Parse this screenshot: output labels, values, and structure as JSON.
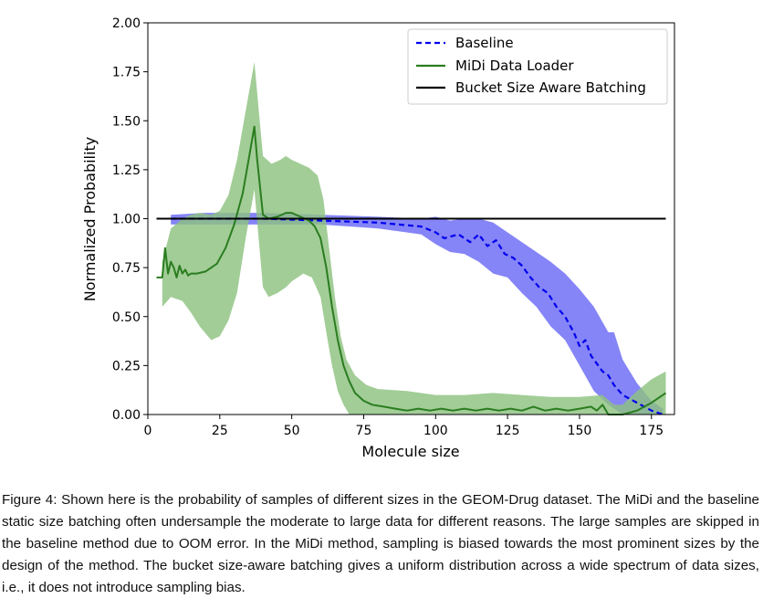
{
  "chart_data": {
    "type": "line",
    "title": "",
    "xlabel": "Molecule size",
    "ylabel": "Normalized Probability",
    "xlim": [
      0,
      183
    ],
    "ylim": [
      0,
      2.0
    ],
    "x_ticks": [
      0,
      25,
      50,
      75,
      100,
      125,
      150,
      175
    ],
    "y_ticks": [
      0,
      0.25,
      0.5,
      0.75,
      1.0,
      1.25,
      1.5,
      1.75,
      2.0
    ],
    "x_tick_labels": [
      "0",
      "25",
      "50",
      "75",
      "100",
      "125",
      "150",
      "175"
    ],
    "y_tick_labels": [
      "0.00",
      "0.25",
      "0.50",
      "0.75",
      "1.00",
      "1.25",
      "1.50",
      "1.75",
      "2.00"
    ],
    "legend_position": "upper right",
    "series": [
      {
        "name": "Baseline",
        "style": "dashed",
        "color": "#0000ee",
        "band_color": "#6a6af5",
        "points": [
          [
            8,
            1.0
          ],
          [
            20,
            1.0
          ],
          [
            40,
            1.0
          ],
          [
            60,
            0.99
          ],
          [
            80,
            0.98
          ],
          [
            95,
            0.96
          ],
          [
            100,
            0.93
          ],
          [
            103,
            0.9
          ],
          [
            108,
            0.92
          ],
          [
            112,
            0.88
          ],
          [
            115,
            0.92
          ],
          [
            118,
            0.86
          ],
          [
            121,
            0.89
          ],
          [
            124,
            0.82
          ],
          [
            127,
            0.8
          ],
          [
            130,
            0.76
          ],
          [
            133,
            0.7
          ],
          [
            136,
            0.65
          ],
          [
            139,
            0.62
          ],
          [
            142,
            0.55
          ],
          [
            145,
            0.5
          ],
          [
            148,
            0.42
          ],
          [
            150,
            0.35
          ],
          [
            152,
            0.38
          ],
          [
            154,
            0.3
          ],
          [
            156,
            0.26
          ],
          [
            158,
            0.22
          ],
          [
            160,
            0.2
          ],
          [
            162,
            0.15
          ],
          [
            165,
            0.1
          ],
          [
            170,
            0.06
          ],
          [
            175,
            0.02
          ],
          [
            179,
            0.0
          ]
        ],
        "lower": [
          [
            8,
            0.97
          ],
          [
            20,
            0.97
          ],
          [
            40,
            0.97
          ],
          [
            60,
            0.97
          ],
          [
            80,
            0.95
          ],
          [
            95,
            0.92
          ],
          [
            100,
            0.87
          ],
          [
            105,
            0.83
          ],
          [
            110,
            0.82
          ],
          [
            115,
            0.78
          ],
          [
            120,
            0.72
          ],
          [
            125,
            0.7
          ],
          [
            130,
            0.62
          ],
          [
            135,
            0.55
          ],
          [
            140,
            0.45
          ],
          [
            145,
            0.38
          ],
          [
            150,
            0.25
          ],
          [
            155,
            0.12
          ],
          [
            160,
            0.05
          ],
          [
            165,
            0.0
          ],
          [
            170,
            0.0
          ],
          [
            179,
            0.0
          ]
        ],
        "upper": [
          [
            8,
            1.02
          ],
          [
            20,
            1.03
          ],
          [
            40,
            1.03
          ],
          [
            60,
            1.02
          ],
          [
            80,
            1.01
          ],
          [
            95,
            1.0
          ],
          [
            100,
            1.01
          ],
          [
            105,
            0.99
          ],
          [
            110,
            1.0
          ],
          [
            115,
            1.0
          ],
          [
            120,
            0.98
          ],
          [
            125,
            0.93
          ],
          [
            130,
            0.88
          ],
          [
            135,
            0.83
          ],
          [
            140,
            0.78
          ],
          [
            145,
            0.72
          ],
          [
            150,
            0.64
          ],
          [
            155,
            0.55
          ],
          [
            160,
            0.42
          ],
          [
            162,
            0.42
          ],
          [
            165,
            0.28
          ],
          [
            170,
            0.16
          ],
          [
            175,
            0.07
          ],
          [
            179,
            0.03
          ]
        ]
      },
      {
        "name": "MiDi Data Loader",
        "style": "solid",
        "color": "#2a7d1f",
        "band_color": "#8dc280",
        "points": [
          [
            3,
            0.7
          ],
          [
            5,
            0.7
          ],
          [
            6,
            0.85
          ],
          [
            7,
            0.72
          ],
          [
            8,
            0.78
          ],
          [
            9,
            0.75
          ],
          [
            10,
            0.7
          ],
          [
            11,
            0.76
          ],
          [
            12,
            0.72
          ],
          [
            13,
            0.74
          ],
          [
            14,
            0.71
          ],
          [
            15,
            0.72
          ],
          [
            17,
            0.72
          ],
          [
            20,
            0.73
          ],
          [
            24,
            0.77
          ],
          [
            27,
            0.85
          ],
          [
            30,
            0.97
          ],
          [
            33,
            1.13
          ],
          [
            35,
            1.3
          ],
          [
            37,
            1.47
          ],
          [
            38,
            1.3
          ],
          [
            40,
            1.02
          ],
          [
            42,
            1.0
          ],
          [
            45,
            1.01
          ],
          [
            48,
            1.03
          ],
          [
            50,
            1.03
          ],
          [
            53,
            1.01
          ],
          [
            56,
            0.99
          ],
          [
            58,
            0.96
          ],
          [
            60,
            0.9
          ],
          [
            62,
            0.75
          ],
          [
            64,
            0.55
          ],
          [
            66,
            0.38
          ],
          [
            68,
            0.25
          ],
          [
            70,
            0.17
          ],
          [
            72,
            0.11
          ],
          [
            75,
            0.07
          ],
          [
            78,
            0.05
          ],
          [
            82,
            0.04
          ],
          [
            86,
            0.03
          ],
          [
            90,
            0.02
          ],
          [
            94,
            0.03
          ],
          [
            98,
            0.02
          ],
          [
            102,
            0.03
          ],
          [
            106,
            0.02
          ],
          [
            110,
            0.03
          ],
          [
            114,
            0.02
          ],
          [
            118,
            0.03
          ],
          [
            122,
            0.02
          ],
          [
            126,
            0.03
          ],
          [
            130,
            0.02
          ],
          [
            134,
            0.04
          ],
          [
            138,
            0.02
          ],
          [
            142,
            0.03
          ],
          [
            146,
            0.02
          ],
          [
            150,
            0.03
          ],
          [
            154,
            0.04
          ],
          [
            156,
            0.02
          ],
          [
            158,
            0.05
          ],
          [
            160,
            0.0
          ],
          [
            162,
            0.0
          ],
          [
            165,
            0.0
          ],
          [
            170,
            0.02
          ],
          [
            175,
            0.06
          ],
          [
            180,
            0.11
          ]
        ],
        "lower": [
          [
            5,
            0.55
          ],
          [
            8,
            0.6
          ],
          [
            12,
            0.58
          ],
          [
            15,
            0.52
          ],
          [
            18,
            0.45
          ],
          [
            22,
            0.38
          ],
          [
            25,
            0.4
          ],
          [
            28,
            0.48
          ],
          [
            31,
            0.62
          ],
          [
            34,
            0.9
          ],
          [
            37,
            1.15
          ],
          [
            40,
            0.65
          ],
          [
            42,
            0.6
          ],
          [
            45,
            0.62
          ],
          [
            48,
            0.65
          ],
          [
            50,
            0.68
          ],
          [
            54,
            0.72
          ],
          [
            57,
            0.7
          ],
          [
            60,
            0.6
          ],
          [
            62,
            0.42
          ],
          [
            64,
            0.25
          ],
          [
            66,
            0.12
          ],
          [
            68,
            0.05
          ],
          [
            70,
            0.0
          ],
          [
            75,
            0.0
          ],
          [
            90,
            0.0
          ],
          [
            120,
            0.0
          ],
          [
            150,
            0.0
          ],
          [
            165,
            0.0
          ],
          [
            175,
            0.0
          ],
          [
            180,
            0.0
          ]
        ],
        "upper": [
          [
            5,
            0.78
          ],
          [
            8,
            0.95
          ],
          [
            12,
            1.0
          ],
          [
            15,
            1.02
          ],
          [
            18,
            1.03
          ],
          [
            22,
            1.02
          ],
          [
            25,
            1.04
          ],
          [
            28,
            1.12
          ],
          [
            31,
            1.3
          ],
          [
            34,
            1.55
          ],
          [
            37,
            1.8
          ],
          [
            40,
            1.32
          ],
          [
            43,
            1.28
          ],
          [
            46,
            1.3
          ],
          [
            48,
            1.32
          ],
          [
            50,
            1.3
          ],
          [
            53,
            1.28
          ],
          [
            56,
            1.26
          ],
          [
            59,
            1.22
          ],
          [
            61,
            1.1
          ],
          [
            63,
            0.85
          ],
          [
            65,
            0.6
          ],
          [
            67,
            0.4
          ],
          [
            69,
            0.28
          ],
          [
            72,
            0.2
          ],
          [
            76,
            0.15
          ],
          [
            80,
            0.13
          ],
          [
            90,
            0.12
          ],
          [
            100,
            0.1
          ],
          [
            110,
            0.1
          ],
          [
            120,
            0.11
          ],
          [
            130,
            0.1
          ],
          [
            140,
            0.09
          ],
          [
            150,
            0.09
          ],
          [
            158,
            0.1
          ],
          [
            162,
            0.05
          ],
          [
            165,
            0.05
          ],
          [
            170,
            0.12
          ],
          [
            175,
            0.18
          ],
          [
            180,
            0.22
          ]
        ]
      },
      {
        "name": "Bucket Size Aware Batching",
        "style": "solid",
        "color": "#000000",
        "points": [
          [
            3,
            1.0
          ],
          [
            180,
            1.0
          ]
        ]
      }
    ]
  },
  "caption": "Figure 4: Shown here is the probability of samples of different sizes in the GEOM-Drug dataset. The MiDi and the baseline static size batching often undersample the moderate to large data for different reasons. The large samples are skipped in the baseline method due to OOM error. In the MiDi method, sampling is biased towards the most prominent sizes by the design of the method. The bucket size-aware batching gives a uniform distribution across a wide spectrum of data sizes, i.e., it does not introduce sampling bias."
}
